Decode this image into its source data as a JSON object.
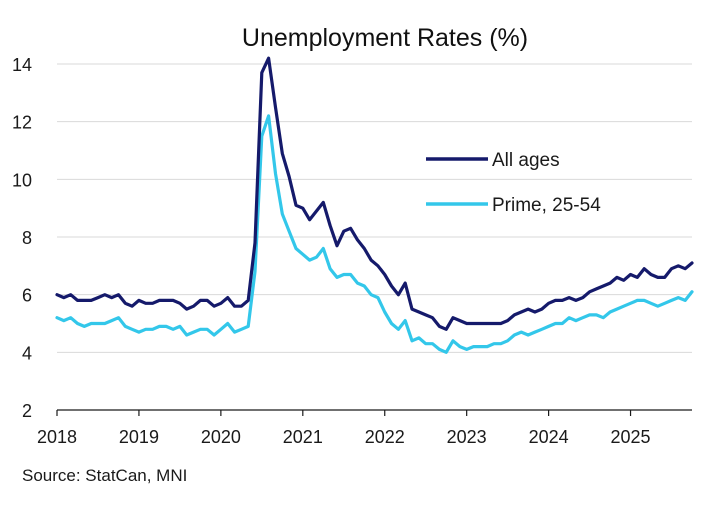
{
  "chart_data": {
    "type": "line",
    "title": "Unemployment Rates (%)",
    "xlabel": "",
    "ylabel": "",
    "xlim": [
      2018.0,
      2025.75
    ],
    "ylim": [
      2,
      14
    ],
    "yticks": [
      2,
      4,
      6,
      8,
      10,
      12,
      14
    ],
    "xticks": [
      2018,
      2019,
      2020,
      2021,
      2022,
      2023,
      2024,
      2025
    ],
    "grid": "horizontal",
    "legend_position": "center-right",
    "colors": {
      "all_ages": "#151a6b",
      "prime": "#33c7ea",
      "grid": "#d9d9d9",
      "axis": "#1a1a1a"
    },
    "series": [
      {
        "name": "All ages",
        "color": "#151a6b",
        "points": [
          [
            2018.0,
            6.0
          ],
          [
            2018.083,
            5.9
          ],
          [
            2018.167,
            6.0
          ],
          [
            2018.25,
            5.8
          ],
          [
            2018.333,
            5.8
          ],
          [
            2018.417,
            5.8
          ],
          [
            2018.5,
            5.9
          ],
          [
            2018.583,
            6.0
          ],
          [
            2018.667,
            5.9
          ],
          [
            2018.75,
            6.0
          ],
          [
            2018.833,
            5.7
          ],
          [
            2018.917,
            5.6
          ],
          [
            2019.0,
            5.8
          ],
          [
            2019.083,
            5.7
          ],
          [
            2019.167,
            5.7
          ],
          [
            2019.25,
            5.8
          ],
          [
            2019.333,
            5.8
          ],
          [
            2019.417,
            5.8
          ],
          [
            2019.5,
            5.7
          ],
          [
            2019.583,
            5.5
          ],
          [
            2019.667,
            5.6
          ],
          [
            2019.75,
            5.8
          ],
          [
            2019.833,
            5.8
          ],
          [
            2019.917,
            5.6
          ],
          [
            2020.0,
            5.7
          ],
          [
            2020.083,
            5.9
          ],
          [
            2020.167,
            5.6
          ],
          [
            2020.25,
            5.6
          ],
          [
            2020.333,
            5.8
          ],
          [
            2020.417,
            7.8
          ],
          [
            2020.5,
            13.7
          ],
          [
            2020.583,
            14.2
          ],
          [
            2020.667,
            12.5
          ],
          [
            2020.75,
            10.9
          ],
          [
            2020.833,
            10.1
          ],
          [
            2020.917,
            9.1
          ],
          [
            2021.0,
            9.0
          ],
          [
            2021.083,
            8.6
          ],
          [
            2021.167,
            8.9
          ],
          [
            2021.25,
            9.2
          ],
          [
            2021.333,
            8.4
          ],
          [
            2021.417,
            7.7
          ],
          [
            2021.5,
            8.2
          ],
          [
            2021.583,
            8.3
          ],
          [
            2021.667,
            7.9
          ],
          [
            2021.75,
            7.6
          ],
          [
            2021.833,
            7.2
          ],
          [
            2021.917,
            7.0
          ],
          [
            2022.0,
            6.7
          ],
          [
            2022.083,
            6.3
          ],
          [
            2022.167,
            6.0
          ],
          [
            2022.25,
            6.4
          ],
          [
            2022.333,
            5.5
          ],
          [
            2022.417,
            5.4
          ],
          [
            2022.5,
            5.3
          ],
          [
            2022.583,
            5.2
          ],
          [
            2022.667,
            4.9
          ],
          [
            2022.75,
            4.8
          ],
          [
            2022.833,
            5.2
          ],
          [
            2022.917,
            5.1
          ],
          [
            2023.0,
            5.0
          ],
          [
            2023.083,
            5.0
          ],
          [
            2023.167,
            5.0
          ],
          [
            2023.25,
            5.0
          ],
          [
            2023.333,
            5.0
          ],
          [
            2023.417,
            5.0
          ],
          [
            2023.5,
            5.1
          ],
          [
            2023.583,
            5.3
          ],
          [
            2023.667,
            5.4
          ],
          [
            2023.75,
            5.5
          ],
          [
            2023.833,
            5.4
          ],
          [
            2023.917,
            5.5
          ],
          [
            2024.0,
            5.7
          ],
          [
            2024.083,
            5.8
          ],
          [
            2024.167,
            5.8
          ],
          [
            2024.25,
            5.9
          ],
          [
            2024.333,
            5.8
          ],
          [
            2024.417,
            5.9
          ],
          [
            2024.5,
            6.1
          ],
          [
            2024.583,
            6.2
          ],
          [
            2024.667,
            6.3
          ],
          [
            2024.75,
            6.4
          ],
          [
            2024.833,
            6.6
          ],
          [
            2024.917,
            6.5
          ],
          [
            2025.0,
            6.7
          ],
          [
            2025.083,
            6.6
          ],
          [
            2025.167,
            6.9
          ],
          [
            2025.25,
            6.7
          ],
          [
            2025.333,
            6.6
          ],
          [
            2025.417,
            6.6
          ],
          [
            2025.5,
            6.9
          ],
          [
            2025.583,
            7.0
          ],
          [
            2025.667,
            6.9
          ],
          [
            2025.75,
            7.1
          ]
        ]
      },
      {
        "name": "Prime, 25-54",
        "color": "#33c7ea",
        "points": [
          [
            2018.0,
            5.2
          ],
          [
            2018.083,
            5.1
          ],
          [
            2018.167,
            5.2
          ],
          [
            2018.25,
            5.0
          ],
          [
            2018.333,
            4.9
          ],
          [
            2018.417,
            5.0
          ],
          [
            2018.5,
            5.0
          ],
          [
            2018.583,
            5.0
          ],
          [
            2018.667,
            5.1
          ],
          [
            2018.75,
            5.2
          ],
          [
            2018.833,
            4.9
          ],
          [
            2018.917,
            4.8
          ],
          [
            2019.0,
            4.7
          ],
          [
            2019.083,
            4.8
          ],
          [
            2019.167,
            4.8
          ],
          [
            2019.25,
            4.9
          ],
          [
            2019.333,
            4.9
          ],
          [
            2019.417,
            4.8
          ],
          [
            2019.5,
            4.9
          ],
          [
            2019.583,
            4.6
          ],
          [
            2019.667,
            4.7
          ],
          [
            2019.75,
            4.8
          ],
          [
            2019.833,
            4.8
          ],
          [
            2019.917,
            4.6
          ],
          [
            2020.0,
            4.8
          ],
          [
            2020.083,
            5.0
          ],
          [
            2020.167,
            4.7
          ],
          [
            2020.25,
            4.8
          ],
          [
            2020.333,
            4.9
          ],
          [
            2020.417,
            6.8
          ],
          [
            2020.5,
            11.5
          ],
          [
            2020.583,
            12.2
          ],
          [
            2020.667,
            10.2
          ],
          [
            2020.75,
            8.8
          ],
          [
            2020.833,
            8.2
          ],
          [
            2020.917,
            7.6
          ],
          [
            2021.0,
            7.4
          ],
          [
            2021.083,
            7.2
          ],
          [
            2021.167,
            7.3
          ],
          [
            2021.25,
            7.6
          ],
          [
            2021.333,
            6.9
          ],
          [
            2021.417,
            6.6
          ],
          [
            2021.5,
            6.7
          ],
          [
            2021.583,
            6.7
          ],
          [
            2021.667,
            6.4
          ],
          [
            2021.75,
            6.3
          ],
          [
            2021.833,
            6.0
          ],
          [
            2021.917,
            5.9
          ],
          [
            2022.0,
            5.4
          ],
          [
            2022.083,
            5.0
          ],
          [
            2022.167,
            4.8
          ],
          [
            2022.25,
            5.1
          ],
          [
            2022.333,
            4.4
          ],
          [
            2022.417,
            4.5
          ],
          [
            2022.5,
            4.3
          ],
          [
            2022.583,
            4.3
          ],
          [
            2022.667,
            4.1
          ],
          [
            2022.75,
            4.0
          ],
          [
            2022.833,
            4.4
          ],
          [
            2022.917,
            4.2
          ],
          [
            2023.0,
            4.1
          ],
          [
            2023.083,
            4.2
          ],
          [
            2023.167,
            4.2
          ],
          [
            2023.25,
            4.2
          ],
          [
            2023.333,
            4.3
          ],
          [
            2023.417,
            4.3
          ],
          [
            2023.5,
            4.4
          ],
          [
            2023.583,
            4.6
          ],
          [
            2023.667,
            4.7
          ],
          [
            2023.75,
            4.6
          ],
          [
            2023.833,
            4.7
          ],
          [
            2023.917,
            4.8
          ],
          [
            2024.0,
            4.9
          ],
          [
            2024.083,
            5.0
          ],
          [
            2024.167,
            5.0
          ],
          [
            2024.25,
            5.2
          ],
          [
            2024.333,
            5.1
          ],
          [
            2024.417,
            5.2
          ],
          [
            2024.5,
            5.3
          ],
          [
            2024.583,
            5.3
          ],
          [
            2024.667,
            5.2
          ],
          [
            2024.75,
            5.4
          ],
          [
            2024.833,
            5.5
          ],
          [
            2024.917,
            5.6
          ],
          [
            2025.0,
            5.7
          ],
          [
            2025.083,
            5.8
          ],
          [
            2025.167,
            5.8
          ],
          [
            2025.25,
            5.7
          ],
          [
            2025.333,
            5.6
          ],
          [
            2025.417,
            5.7
          ],
          [
            2025.5,
            5.8
          ],
          [
            2025.583,
            5.9
          ],
          [
            2025.667,
            5.8
          ],
          [
            2025.75,
            6.1
          ]
        ]
      }
    ]
  },
  "source": "Source: StatCan, MNI"
}
